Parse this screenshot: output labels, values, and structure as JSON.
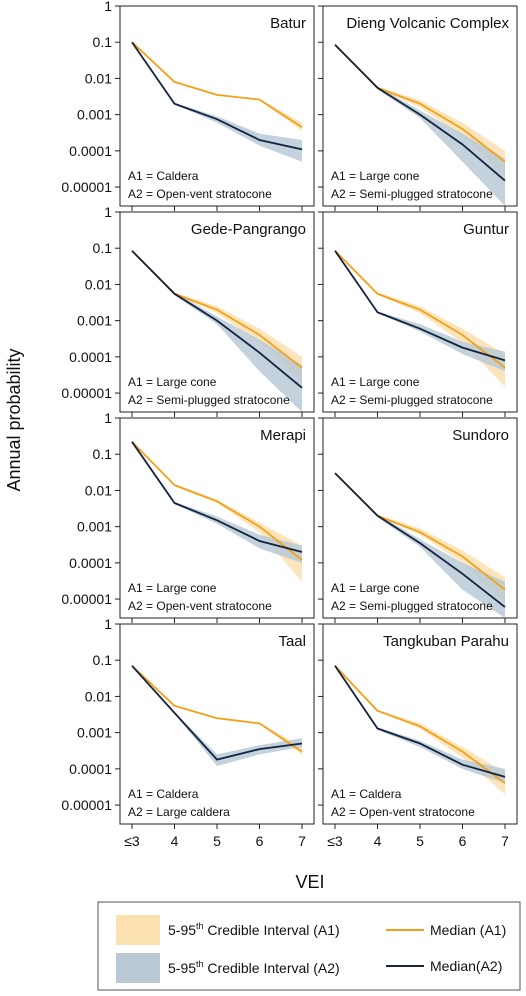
{
  "figure": {
    "ylabel": "Annual probability",
    "xlabel": "VEI"
  },
  "colors": {
    "a1_line": "#f4a018",
    "a1_band": "#fbe1b0",
    "a2_line": "#14233f",
    "a2_band": "#b9cad6"
  },
  "legend": {
    "band_a1_prefix": "5-95",
    "band_a1_sup": "th",
    "band_a1_suffix": " Credible Interval (A1)",
    "band_a2_prefix": "5-95",
    "band_a2_sup": "th",
    "band_a2_suffix": " Credible Interval (A2)",
    "median_a1": "Median (A1)",
    "median_a2": "Median(A2)"
  },
  "chart_data": [
    {
      "type": "line",
      "title": "Batur",
      "x_labels": [
        "≤3",
        "4",
        "5",
        "6",
        "7"
      ],
      "y_ticks": [
        "1",
        "0.1",
        "0.01",
        "0.001",
        "0.0001",
        "0.00001"
      ],
      "ylim": [
        3e-06,
        1
      ],
      "yscale": "log",
      "notes": [
        "A1 = Caldera",
        "A2 = Open-vent stratocone"
      ],
      "series": [
        {
          "name": "Median (A1)",
          "values": [
            0.1,
            0.008,
            0.0035,
            0.0026,
            0.00045
          ],
          "band_lo": [
            0.1,
            0.008,
            0.0035,
            0.0025,
            0.00035
          ],
          "band_hi": [
            0.1,
            0.008,
            0.0035,
            0.0027,
            0.0006
          ]
        },
        {
          "name": "Median(A2)",
          "values": [
            0.1,
            0.002,
            0.00075,
            0.0002,
            0.00011
          ],
          "band_lo": [
            0.1,
            0.0019,
            0.0006,
            0.00014,
            5e-05
          ],
          "band_hi": [
            0.1,
            0.0021,
            0.0009,
            0.0003,
            0.0002
          ]
        }
      ]
    },
    {
      "type": "line",
      "title": "Dieng Volcanic Complex",
      "x_labels": [
        "≤3",
        "4",
        "5",
        "6",
        "7"
      ],
      "y_ticks": [],
      "ylim": [
        3e-06,
        1
      ],
      "yscale": "log",
      "notes": [
        "A1 = Large cone",
        "A2 = Semi-plugged stratocone"
      ],
      "series": [
        {
          "name": "Median (A1)",
          "values": [
            0.085,
            0.0055,
            0.002,
            0.0004,
            5e-05
          ],
          "band_lo": [
            0.085,
            0.0052,
            0.0016,
            0.00025,
            2e-05
          ],
          "band_hi": [
            0.085,
            0.006,
            0.0025,
            0.0006,
            0.0001
          ]
        },
        {
          "name": "Median(A2)",
          "values": [
            0.085,
            0.0055,
            0.001,
            0.00015,
            1.5e-05
          ],
          "band_lo": [
            0.085,
            0.005,
            0.0008,
            5e-05,
            3e-06
          ],
          "band_hi": [
            0.085,
            0.006,
            0.0013,
            0.0003,
            6e-05
          ]
        }
      ]
    },
    {
      "type": "line",
      "title": "Gede-Pangrango",
      "x_labels": [
        "≤3",
        "4",
        "5",
        "6",
        "7"
      ],
      "y_ticks": [
        "1",
        "0.1",
        "0.01",
        "0.001",
        "0.0001",
        "0.00001"
      ],
      "ylim": [
        3e-06,
        1
      ],
      "yscale": "log",
      "notes": [
        "A1 = Large cone",
        "A2 = Semi-plugged stratocone"
      ],
      "series": [
        {
          "name": "Median (A1)",
          "values": [
            0.085,
            0.0055,
            0.002,
            0.0004,
            5e-05
          ],
          "band_lo": [
            0.085,
            0.0052,
            0.0016,
            0.00025,
            2e-05
          ],
          "band_hi": [
            0.085,
            0.006,
            0.0025,
            0.0006,
            0.0001
          ]
        },
        {
          "name": "Median(A2)",
          "values": [
            0.085,
            0.0055,
            0.001,
            0.00013,
            1.4e-05
          ],
          "band_lo": [
            0.085,
            0.005,
            0.0008,
            4e-05,
            3e-06
          ],
          "band_hi": [
            0.085,
            0.006,
            0.0013,
            0.0003,
            6e-05
          ]
        }
      ]
    },
    {
      "type": "line",
      "title": "Guntur",
      "x_labels": [
        "≤3",
        "4",
        "5",
        "6",
        "7"
      ],
      "y_ticks": [],
      "ylim": [
        3e-06,
        1
      ],
      "yscale": "log",
      "notes": [
        "A1 = Large cone",
        "A2 = Semi-plugged stratocone"
      ],
      "series": [
        {
          "name": "Median (A1)",
          "values": [
            0.085,
            0.0055,
            0.002,
            0.0004,
            5e-05
          ],
          "band_lo": [
            0.085,
            0.0052,
            0.0016,
            0.00025,
            1.5e-05
          ],
          "band_hi": [
            0.085,
            0.006,
            0.0025,
            0.0006,
            0.00012
          ]
        },
        {
          "name": "Median(A2)",
          "values": [
            0.085,
            0.0017,
            0.0006,
            0.00018,
            8e-05
          ],
          "band_lo": [
            0.085,
            0.0016,
            0.0005,
            0.00012,
            4e-05
          ],
          "band_hi": [
            0.085,
            0.0018,
            0.0008,
            0.00026,
            0.00014
          ]
        }
      ]
    },
    {
      "type": "line",
      "title": "Merapi",
      "x_labels": [
        "≤3",
        "4",
        "5",
        "6",
        "7"
      ],
      "y_ticks": [
        "1",
        "0.1",
        "0.01",
        "0.001",
        "0.0001",
        "0.00001"
      ],
      "ylim": [
        3e-06,
        1
      ],
      "yscale": "log",
      "notes": [
        "A1 = Large cone",
        "A2 = Open-vent stratocone"
      ],
      "series": [
        {
          "name": "Median (A1)",
          "values": [
            0.22,
            0.014,
            0.005,
            0.001,
            0.00012
          ],
          "band_lo": [
            0.22,
            0.013,
            0.0045,
            0.0007,
            3e-05
          ],
          "band_hi": [
            0.22,
            0.015,
            0.0055,
            0.0013,
            0.0003
          ]
        },
        {
          "name": "Median(A2)",
          "values": [
            0.22,
            0.0045,
            0.0015,
            0.0004,
            0.0002
          ],
          "band_lo": [
            0.22,
            0.0042,
            0.0012,
            0.00025,
            0.0001
          ],
          "band_hi": [
            0.22,
            0.0048,
            0.0019,
            0.0006,
            0.0003
          ]
        }
      ]
    },
    {
      "type": "line",
      "title": "Sundoro",
      "x_labels": [
        "≤3",
        "4",
        "5",
        "6",
        "7"
      ],
      "y_ticks": [],
      "ylim": [
        3e-06,
        1
      ],
      "yscale": "log",
      "notes": [
        "A1 = Large cone",
        "A2 = Semi-plugged stratocone"
      ],
      "series": [
        {
          "name": "Median (A1)",
          "values": [
            0.03,
            0.002,
            0.0007,
            0.00015,
            1.8e-05
          ],
          "band_lo": [
            0.03,
            0.0019,
            0.0006,
            0.0001,
            8e-06
          ],
          "band_hi": [
            0.03,
            0.0021,
            0.0009,
            0.00022,
            4e-05
          ]
        },
        {
          "name": "Median(A2)",
          "values": [
            0.03,
            0.002,
            0.00035,
            5e-05,
            6e-06
          ],
          "band_lo": [
            0.03,
            0.0018,
            0.00028,
            1.8e-05,
            3e-06
          ],
          "band_hi": [
            0.03,
            0.0022,
            0.00045,
            0.0001,
            3e-05
          ]
        }
      ]
    },
    {
      "type": "line",
      "title": "Taal",
      "x_labels": [
        "≤3",
        "4",
        "5",
        "6",
        "7"
      ],
      "y_ticks": [
        "1",
        "0.1",
        "0.01",
        "0.001",
        "0.0001",
        "0.00001"
      ],
      "ylim": [
        3e-06,
        1
      ],
      "yscale": "log",
      "notes": [
        "A1 = Caldera",
        "A2 = Large caldera"
      ],
      "series": [
        {
          "name": "Median (A1)",
          "values": [
            0.07,
            0.0055,
            0.0025,
            0.0018,
            0.0003
          ],
          "band_lo": [
            0.07,
            0.0055,
            0.0025,
            0.0017,
            0.00025
          ],
          "band_hi": [
            0.07,
            0.0055,
            0.0025,
            0.0019,
            0.0004
          ]
        },
        {
          "name": "Median(A2)",
          "values": [
            0.07,
            0.0035,
            0.00018,
            0.00035,
            0.0005
          ],
          "band_lo": [
            0.07,
            0.0034,
            0.00012,
            0.00025,
            0.0004
          ],
          "band_hi": [
            0.07,
            0.0036,
            0.00025,
            0.00045,
            0.0007
          ]
        }
      ]
    },
    {
      "type": "line",
      "title": "Tangkuban Parahu",
      "x_labels": [
        "≤3",
        "4",
        "5",
        "6",
        "7"
      ],
      "y_ticks": [],
      "ylim": [
        3e-06,
        1
      ],
      "yscale": "log",
      "notes": [
        "A1 = Caldera",
        "A2 = Open-vent stratocone"
      ],
      "series": [
        {
          "name": "Median (A1)",
          "values": [
            0.07,
            0.004,
            0.0015,
            0.0003,
            4e-05
          ],
          "band_lo": [
            0.07,
            0.0038,
            0.0013,
            0.0002,
            2e-05
          ],
          "band_hi": [
            0.07,
            0.0042,
            0.0018,
            0.0004,
            8e-05
          ]
        },
        {
          "name": "Median(A2)",
          "values": [
            0.07,
            0.0013,
            0.0005,
            0.00013,
            6e-05
          ],
          "band_lo": [
            0.07,
            0.0012,
            0.0004,
            0.0001,
            4e-05
          ],
          "band_hi": [
            0.07,
            0.0014,
            0.0006,
            0.00018,
            0.0001
          ]
        }
      ]
    }
  ]
}
